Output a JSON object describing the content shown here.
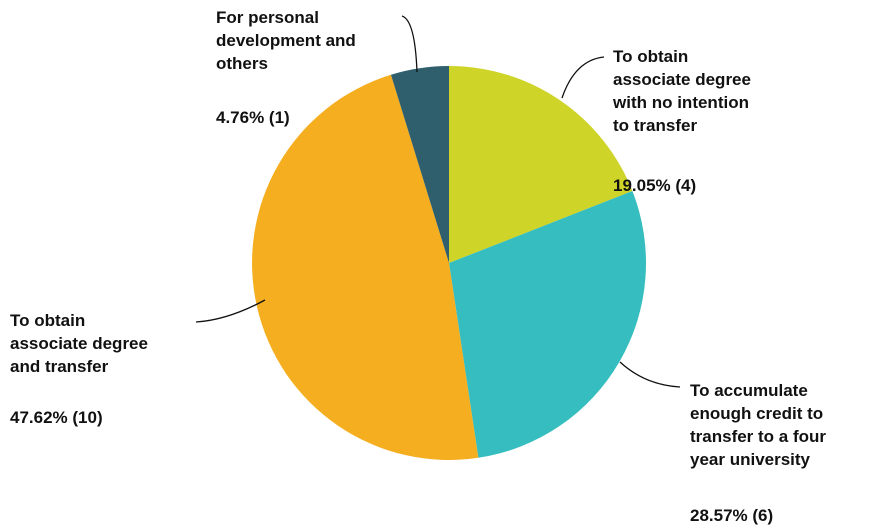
{
  "chart_data": {
    "type": "pie",
    "slices": [
      {
        "label": "To obtain\nassociate degree\nwith no intention\nto transfer",
        "value": 19.05,
        "count": 4,
        "value_text": "19.05% (4)",
        "color": "#cfd428"
      },
      {
        "label": "To accumulate\nenough credit to\ntransfer to a four\nyear university",
        "value": 28.57,
        "count": 6,
        "value_text": "28.57% (6)",
        "color": "#35bdbf"
      },
      {
        "label": "To obtain\nassociate degree\nand transfer",
        "value": 47.62,
        "count": 10,
        "value_text": "47.62% (10)",
        "color": "#f5ae1f"
      },
      {
        "label": "For personal\ndevelopment and\nothers",
        "value": 4.76,
        "count": 1,
        "value_text": "4.76% (1)",
        "color": "#2f5f6c"
      }
    ],
    "start_angle": "12 o'clock",
    "direction": "clockwise",
    "legend": "none"
  }
}
